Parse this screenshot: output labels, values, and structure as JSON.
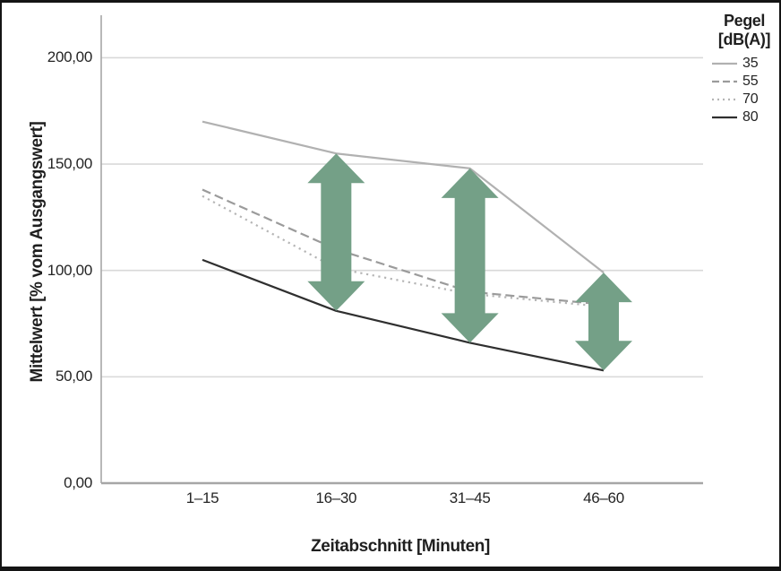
{
  "chart_data": {
    "type": "line",
    "title": "",
    "xlabel": "Zeitabschnitt [Minuten]",
    "ylabel": "Mittelwert [% vom Ausgangswert]",
    "categories": [
      "1–15",
      "16–30",
      "31–45",
      "46–60"
    ],
    "y_ticks": [
      {
        "label": "0,00",
        "value": 0
      },
      {
        "label": "50,00",
        "value": 50
      },
      {
        "label": "100,00",
        "value": 100
      },
      {
        "label": "150,00",
        "value": 150
      },
      {
        "label": "200,00",
        "value": 200
      }
    ],
    "ylim": [
      0,
      220
    ],
    "grid": "horizontal",
    "legend": {
      "title_line1": "Pegel",
      "title_line2": "[dB(A)]",
      "position": "top-right"
    },
    "series": [
      {
        "name": "35",
        "style": "solid",
        "color": "#b1b1b1",
        "values": [
          170,
          155,
          148,
          99
        ]
      },
      {
        "name": "55",
        "style": "dashed",
        "color": "#9b9b9b",
        "values": [
          138,
          110,
          90,
          84
        ]
      },
      {
        "name": "70",
        "style": "dotted",
        "color": "#b5b5b5",
        "values": [
          135,
          101,
          89,
          83
        ]
      },
      {
        "name": "80",
        "style": "solid",
        "color": "#2f2f2f",
        "values": [
          105,
          81,
          66,
          53
        ]
      }
    ],
    "annotations": {
      "arrow_color": "#74a087",
      "arrows": [
        {
          "category_index": 1,
          "from_value": 81,
          "to_value": 155
        },
        {
          "category_index": 2,
          "from_value": 66,
          "to_value": 148
        },
        {
          "category_index": 3,
          "from_value": 53,
          "to_value": 99
        }
      ]
    }
  }
}
